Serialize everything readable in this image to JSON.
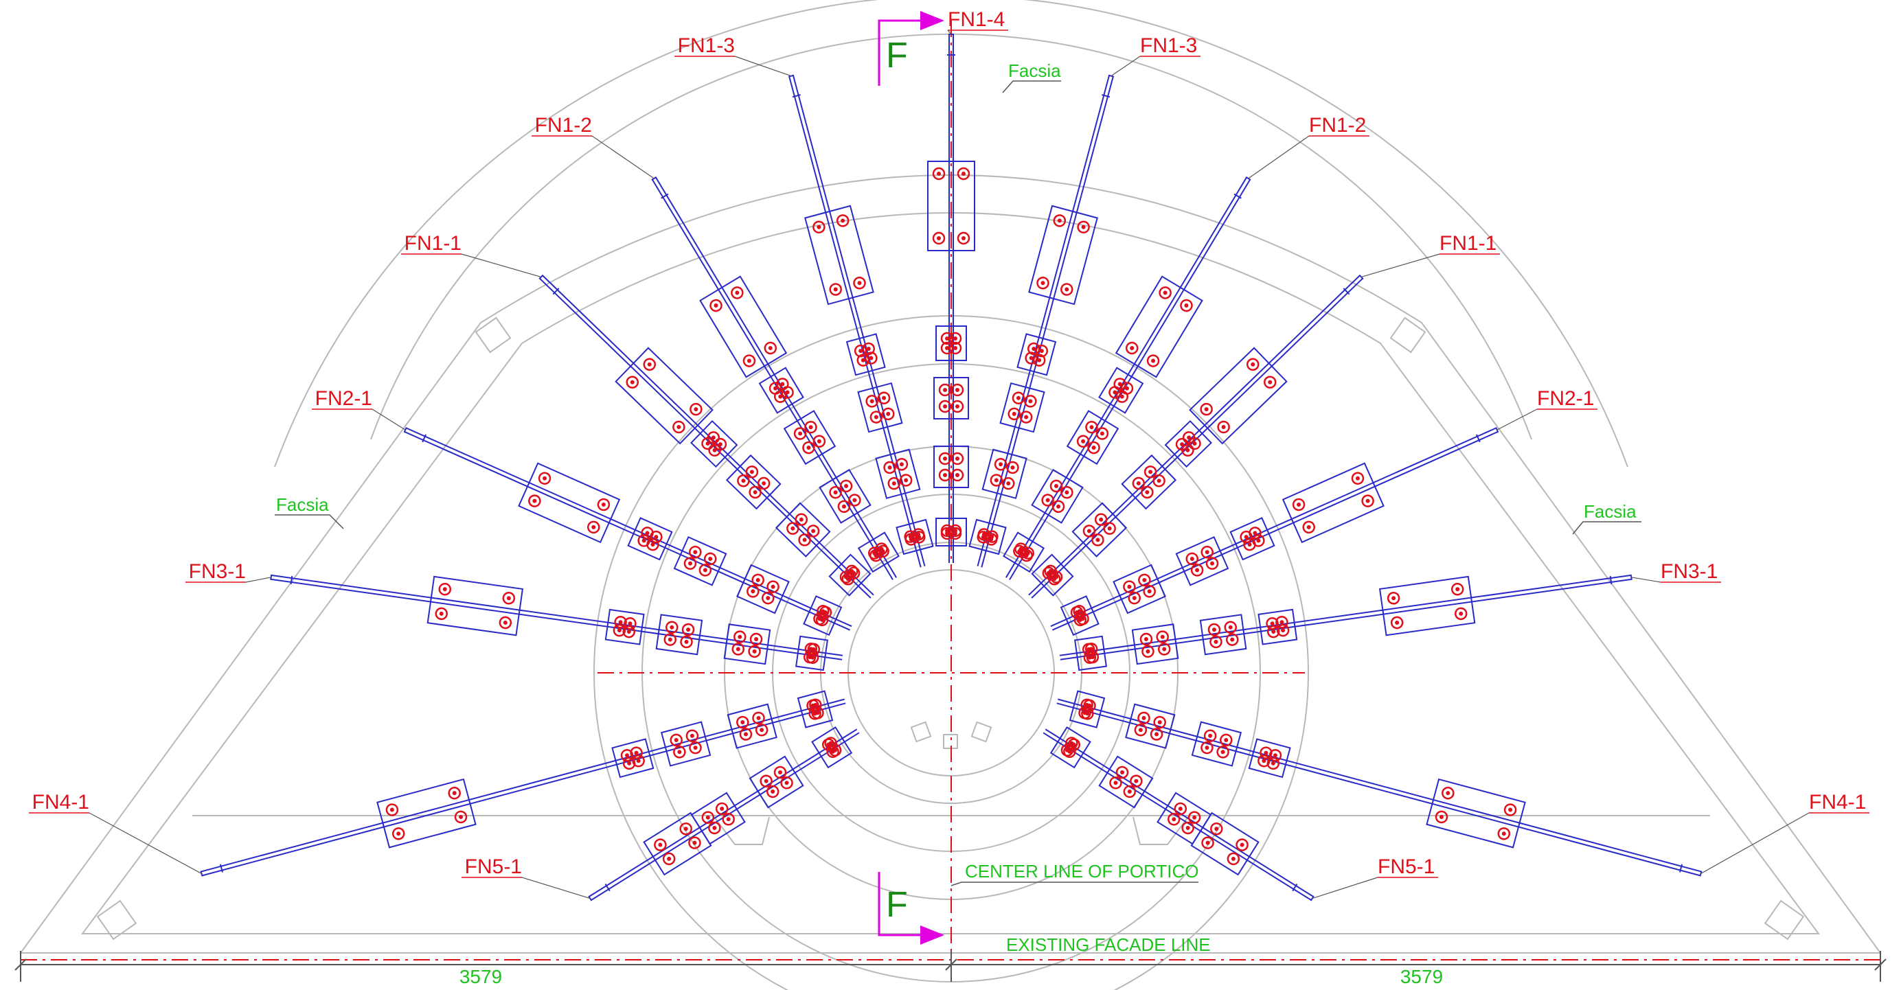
{
  "colors": {
    "member": "#2a2ac8",
    "bolt": "#e0101a",
    "outline": "#b8b8b8",
    "label": "#e0101a",
    "annotation": "#1fc21f",
    "section_arrow": "#e000e0",
    "centerline": "#e0101a"
  },
  "section_marks": {
    "top": "F",
    "bottom": "F"
  },
  "annotations": {
    "facsia_top": "Facsia",
    "facsia_left": "Facsia",
    "facsia_right": "Facsia",
    "centerline": "CENTER LINE OF PORTICO",
    "facade": "EXISTING FACADE LINE"
  },
  "dimensions": {
    "left": "3579",
    "right": "3579"
  },
  "members": [
    {
      "side": "top",
      "label": "FN1-4",
      "angle_deg": 90
    },
    {
      "side": "left",
      "label": "FN1-3",
      "angle_deg": 105
    },
    {
      "side": "right",
      "label": "FN1-3",
      "angle_deg": 75
    },
    {
      "side": "left",
      "label": "FN1-2",
      "angle_deg": 121
    },
    {
      "side": "right",
      "label": "FN1-2",
      "angle_deg": 59
    },
    {
      "side": "left",
      "label": "FN1-1",
      "angle_deg": 136
    },
    {
      "side": "right",
      "label": "FN1-1",
      "angle_deg": 44
    },
    {
      "side": "left",
      "label": "FN2-1",
      "angle_deg": 156
    },
    {
      "side": "right",
      "label": "FN2-1",
      "angle_deg": 24
    },
    {
      "side": "left",
      "label": "FN3-1",
      "angle_deg": 172
    },
    {
      "side": "right",
      "label": "FN3-1",
      "angle_deg": 8
    },
    {
      "side": "left",
      "label": "FN4-1",
      "angle_deg": 195
    },
    {
      "side": "right",
      "label": "FN4-1",
      "angle_deg": -15
    },
    {
      "side": "left",
      "label": "FN5-1",
      "angle_deg": 212
    },
    {
      "side": "right",
      "label": "FN5-1",
      "angle_deg": -32
    }
  ]
}
